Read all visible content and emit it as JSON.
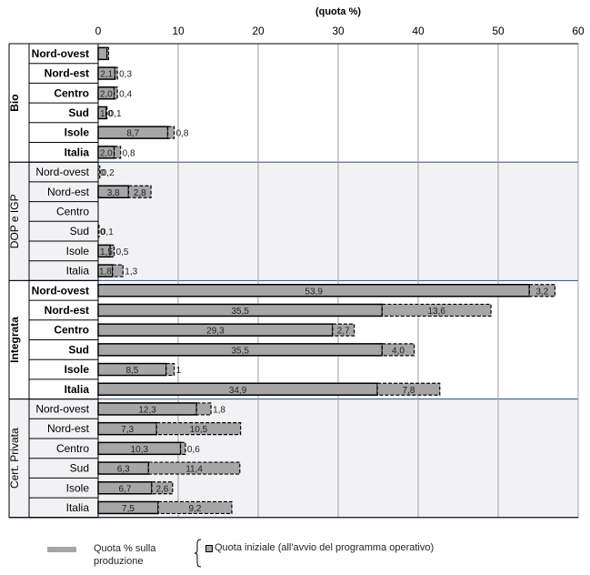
{
  "chart_data": {
    "type": "bar",
    "orientation": "horizontal",
    "stacked": true,
    "xlabel": "(quota %)",
    "xlim": [
      0,
      60
    ],
    "xticks": [
      "0",
      "10",
      "20",
      "30",
      "40",
      "50",
      "60"
    ],
    "grid": true,
    "legend_position": "bottom",
    "series": [
      {
        "name": "Quota % sulla produzione",
        "style": "solid grey fill"
      },
      {
        "name": "Quota iniziale (all'avvio del programma operativo)",
        "style": "dashed outline"
      }
    ],
    "groups": [
      {
        "name": "Bio",
        "shaded": false,
        "rows": [
          {
            "label": "Nord-ovest",
            "value": 1.1,
            "initial": 0.2,
            "value_label": "",
            "initial_label": ""
          },
          {
            "label": "Nord-est",
            "value": 2.1,
            "initial": 0.3,
            "value_label": "2,1",
            "initial_label": "0,3"
          },
          {
            "label": "Centro",
            "value": 2.0,
            "initial": 0.4,
            "value_label": "2,0",
            "initial_label": "0,4"
          },
          {
            "label": "Sud",
            "value": 1.0,
            "initial": 0.1,
            "value_label": "1,0",
            "initial_label": "0,1"
          },
          {
            "label": "Isole",
            "value": 8.7,
            "initial": 0.8,
            "value_label": "8,7",
            "initial_label": "0,8"
          },
          {
            "label": "Italia",
            "value": 2.0,
            "initial": 0.8,
            "value_label": "2,0",
            "initial_label": "0,8"
          }
        ]
      },
      {
        "name": "DOP e IGP",
        "shaded": true,
        "rows": [
          {
            "label": "Nord-ovest",
            "value": 0.0,
            "initial": 0.2,
            "value_label": "0",
            "initial_label": "0,2"
          },
          {
            "label": "Nord-est",
            "value": 3.8,
            "initial": 2.8,
            "value_label": "3,8",
            "initial_label": "2,8"
          },
          {
            "label": "Centro",
            "value": 0.0,
            "initial": 0.0,
            "value_label": "",
            "initial_label": ""
          },
          {
            "label": "Sud",
            "value": 0.0,
            "initial": 0.1,
            "value_label": "0",
            "initial_label": "0,1"
          },
          {
            "label": "Isole",
            "value": 1.5,
            "initial": 0.5,
            "value_label": "1,5",
            "initial_label": "0,5"
          },
          {
            "label": "Italia",
            "value": 1.8,
            "initial": 1.3,
            "value_label": "1,8",
            "initial_label": "1,3"
          }
        ]
      },
      {
        "name": "Integrata",
        "shaded": false,
        "rows": [
          {
            "label": "Nord-ovest",
            "value": 53.9,
            "initial": 3.2,
            "value_label": "53,9",
            "initial_label": "3,2"
          },
          {
            "label": "Nord-est",
            "value": 35.5,
            "initial": 13.6,
            "value_label": "35,5",
            "initial_label": "13,6"
          },
          {
            "label": "Centro",
            "value": 29.3,
            "initial": 2.7,
            "value_label": "29,3",
            "initial_label": "2,7"
          },
          {
            "label": "Sud",
            "value": 35.5,
            "initial": 4.0,
            "value_label": "35,5",
            "initial_label": "4,0"
          },
          {
            "label": "Isole",
            "value": 8.5,
            "initial": 1.0,
            "value_label": "8,5",
            "initial_label": "1"
          },
          {
            "label": "Italia",
            "value": 34.9,
            "initial": 7.8,
            "value_label": "34,9",
            "initial_label": "7,8"
          }
        ]
      },
      {
        "name": "Cert. Privata",
        "shaded": true,
        "rows": [
          {
            "label": "Nord-ovest",
            "value": 12.3,
            "initial": 1.8,
            "value_label": "12,3",
            "initial_label": "1,8"
          },
          {
            "label": "Nord-est",
            "value": 7.3,
            "initial": 10.5,
            "value_label": "7,3",
            "initial_label": "10,5"
          },
          {
            "label": "Centro",
            "value": 10.3,
            "initial": 0.6,
            "value_label": "10,3",
            "initial_label": "0,6"
          },
          {
            "label": "Sud",
            "value": 6.3,
            "initial": 11.4,
            "value_label": "6,3",
            "initial_label": "11,4"
          },
          {
            "label": "Isole",
            "value": 6.7,
            "initial": 2.6,
            "value_label": "6,7",
            "initial_label": "2,6"
          },
          {
            "label": "Italia",
            "value": 7.5,
            "initial": 9.2,
            "value_label": "7,5",
            "initial_label": "9,2"
          }
        ]
      }
    ]
  },
  "legend": {
    "item1": "Quota % sulla produzione",
    "item2": "Quota iniziale (all'avvio del programma operativo)"
  },
  "colors": {
    "bar_fill": "#a6a6a6",
    "grid": "#a0a0a0",
    "panel_shade": "#f2f2f4",
    "panel_border": "#2f4f7f"
  }
}
